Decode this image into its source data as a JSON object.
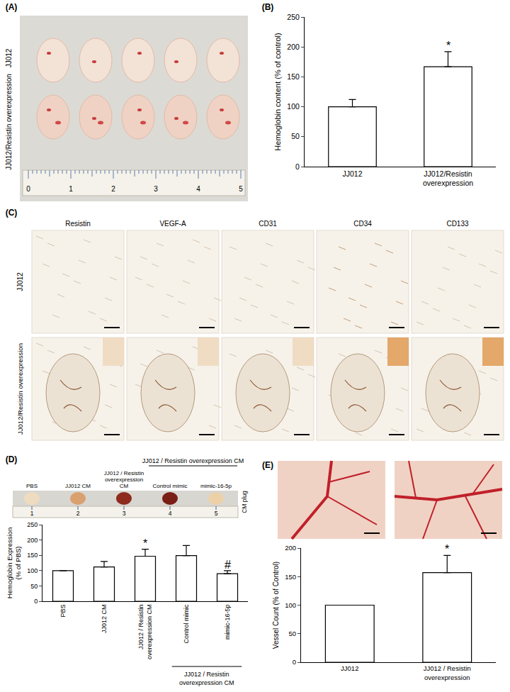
{
  "figure": {
    "panel_labels": [
      "(A)",
      "(B)",
      "(C)",
      "(D)",
      "(E)"
    ],
    "panel_A": {
      "row_labels": [
        "JJ012",
        "JJ012/Resistin overexpression"
      ],
      "ruler_ticks": [
        0,
        1,
        2,
        3,
        4,
        5
      ]
    },
    "panel_C": {
      "row_labels": [
        "JJ012",
        "JJ012/Resistin overexpression"
      ],
      "column_labels": [
        "Resistin",
        "VEGF-A",
        "CD31",
        "CD34",
        "CD133"
      ]
    },
    "panel_D_photo": {
      "header": "JJ012 / Resistin overexpression CM",
      "labels": [
        "PBS",
        "JJ012 CM",
        "JJ012 / Resistin overexpression CM",
        "Control mimic",
        "mimic-16-5p"
      ],
      "side_label": "CM plug",
      "ruler_ticks": [
        1,
        2,
        3,
        4,
        5
      ]
    }
  },
  "chart_data": [
    {
      "type": "bar",
      "categories": [
        "JJ012",
        "JJ012/Resistin overexpression"
      ],
      "values": [
        100,
        167
      ],
      "errors": [
        12,
        25
      ],
      "color": "#ffffff",
      "ylabel": "Hemoglobin content (% of control)",
      "ylim": [
        0,
        250
      ],
      "yticks": [
        0,
        50,
        100,
        150,
        200,
        250
      ],
      "grid": false,
      "annotations": [
        {
          "text": "*",
          "category": "JJ012/Resistin overexpression"
        }
      ]
    },
    {
      "type": "bar",
      "categories": [
        "PBS",
        "JJ012 CM",
        "JJ012 / Resistin overexpression CM",
        "Control mimic",
        "mimic-16-5p"
      ],
      "values": [
        100,
        112,
        147,
        149,
        90
      ],
      "errors": [
        0,
        18,
        23,
        33,
        10
      ],
      "color": "#ffffff",
      "ylabel": "Hemoglobin Expression (% of PBS)",
      "ylim": [
        0,
        250
      ],
      "yticks": [
        0,
        50,
        100,
        150,
        200,
        250
      ],
      "grid": false,
      "annotations": [
        {
          "text": "*",
          "category": "JJ012 / Resistin overexpression CM"
        },
        {
          "text": "#",
          "category": "mimic-16-5p"
        }
      ],
      "groups": [
        {
          "label": "JJ012 / Resistin overexpression CM",
          "categories": [
            "Control mimic",
            "mimic-16-5p"
          ]
        }
      ]
    },
    {
      "type": "bar",
      "categories": [
        "JJ012",
        "JJ012 / Resistin overexpression"
      ],
      "values": [
        100,
        157
      ],
      "errors": [
        0,
        30
      ],
      "color": "#ffffff",
      "ylabel": "Vessel Count (% of Control)",
      "ylim": [
        0,
        200
      ],
      "yticks": [
        0,
        50,
        100,
        150,
        200
      ],
      "grid": false,
      "annotations": [
        {
          "text": "*",
          "category": "JJ012 / Resistin overexpression"
        }
      ]
    }
  ]
}
